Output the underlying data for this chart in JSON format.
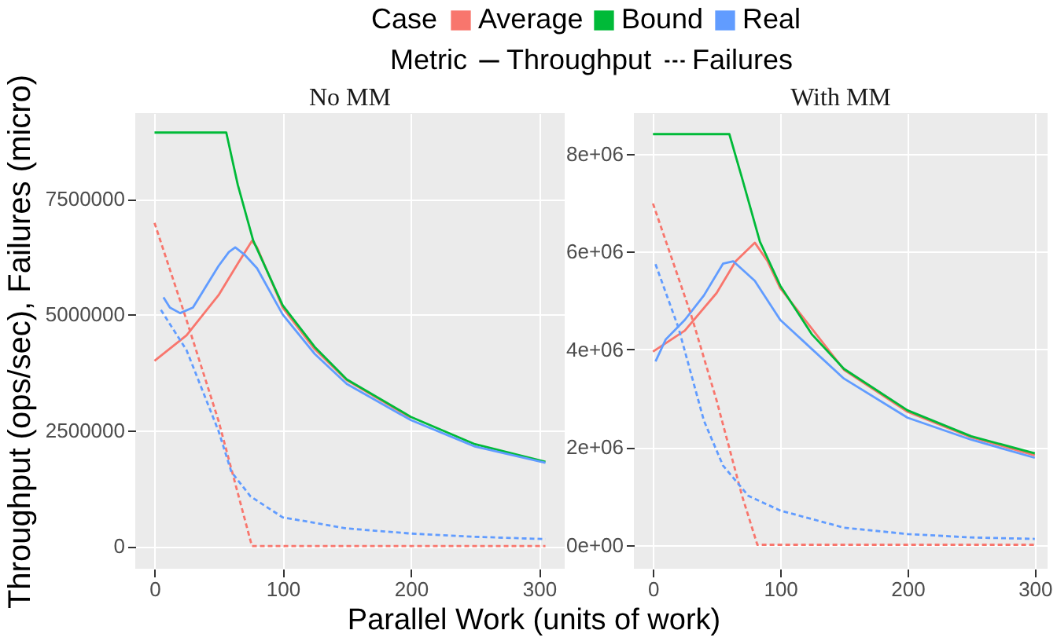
{
  "chart_data": [
    {
      "type": "line",
      "title": "No MM",
      "ylabel": "Throughput (ops/sec), Failures (micro)",
      "xlabel": "Parallel Work (units of work)",
      "legend_title": "Case",
      "annotations": [
        "Metric",
        "Throughput",
        "Failures"
      ],
      "legend": "top",
      "grid": true,
      "xlim": [
        -15,
        320
      ],
      "xticks": [
        0,
        100,
        200,
        300
      ],
      "ylim": [
        -490000,
        9350000
      ],
      "yticks": [
        0,
        2500000,
        5000000,
        7500000
      ],
      "series": [
        {
          "name": "Average",
          "color": "#f8766d",
          "line_style": "solid",
          "x": [
            0,
            25,
            50,
            65,
            76,
            80,
            100,
            125,
            150,
            200
          ],
          "values": [
            4000000,
            4550000,
            5420000,
            6100000,
            6590000,
            6450000,
            5150000,
            4250000,
            3580000,
            2770000
          ]
        },
        {
          "name": "Bound",
          "color": "#00ba38",
          "line_style": "solid",
          "x": [
            0,
            56,
            65,
            77,
            100,
            125,
            150,
            200,
            250,
            305
          ],
          "values": [
            8930000,
            8930000,
            7800000,
            6600000,
            5200000,
            4300000,
            3600000,
            2790000,
            2200000,
            1820000
          ]
        },
        {
          "name": "Real",
          "color": "#619cff",
          "line_style": "solid",
          "x": [
            7,
            12,
            20,
            30,
            40,
            50,
            58,
            63,
            70,
            80,
            100,
            125,
            150,
            200,
            250,
            305
          ],
          "values": [
            5370000,
            5150000,
            5030000,
            5150000,
            5600000,
            6050000,
            6350000,
            6450000,
            6300000,
            6000000,
            5000000,
            4150000,
            3500000,
            2720000,
            2150000,
            1800000
          ]
        },
        {
          "color": "#f8766d",
          "line_style": "dashed",
          "x": [
            0,
            25,
            50,
            76,
            305
          ],
          "values": [
            6980000,
            4880000,
            2700000,
            0,
            0
          ]
        },
        {
          "color": "#619cff",
          "line_style": "dashed",
          "x": [
            5,
            25,
            50,
            60,
            75,
            100,
            150,
            200,
            250,
            305
          ],
          "values": [
            5100000,
            4230000,
            2480000,
            1600000,
            1070000,
            620000,
            380000,
            270000,
            200000,
            150000
          ]
        }
      ]
    },
    {
      "type": "line",
      "title": "With MM",
      "grid": true,
      "xlim": [
        -15,
        310
      ],
      "xticks": [
        0,
        100,
        200,
        300
      ],
      "ylim": [
        -490000,
        8830000
      ],
      "yticks": [
        {
          "value": 0,
          "label": "0e+00"
        },
        {
          "value": 2000000,
          "label": "2e+06"
        },
        {
          "value": 4000000,
          "label": "4e+06"
        },
        {
          "value": 6000000,
          "label": "6e+06"
        },
        {
          "value": 8000000,
          "label": "8e+06"
        }
      ],
      "series": [
        {
          "color": "#f8766d",
          "line_style": "solid",
          "x": [
            0,
            25,
            50,
            65,
            80,
            90,
            100,
            150,
            200,
            250,
            300
          ],
          "values": [
            3950000,
            4380000,
            5150000,
            5800000,
            6180000,
            5800000,
            5250000,
            3580000,
            2720000,
            2200000,
            1830000
          ]
        },
        {
          "color": "#00ba38",
          "line_style": "solid",
          "x": [
            0,
            60,
            70,
            84,
            100,
            125,
            150,
            200,
            250,
            300
          ],
          "values": [
            8400000,
            8400000,
            7500000,
            6200000,
            5300000,
            4300000,
            3600000,
            2750000,
            2220000,
            1870000
          ]
        },
        {
          "color": "#619cff",
          "line_style": "solid",
          "x": [
            2,
            10,
            25,
            40,
            55,
            63,
            80,
            100,
            150,
            200,
            250,
            300
          ],
          "values": [
            3750000,
            4200000,
            4600000,
            5100000,
            5750000,
            5800000,
            5400000,
            4600000,
            3400000,
            2600000,
            2150000,
            1780000
          ]
        },
        {
          "color": "#f8766d",
          "line_style": "dashed",
          "x": [
            0,
            30,
            50,
            70,
            82,
            300
          ],
          "values": [
            6980000,
            4700000,
            2950000,
            1000000,
            0,
            0
          ]
        },
        {
          "color": "#619cff",
          "line_style": "dashed",
          "x": [
            2,
            20,
            40,
            55,
            75,
            100,
            150,
            200,
            250,
            300
          ],
          "values": [
            5740000,
            4440000,
            2540000,
            1620000,
            1000000,
            700000,
            350000,
            220000,
            150000,
            120000
          ]
        }
      ]
    }
  ]
}
